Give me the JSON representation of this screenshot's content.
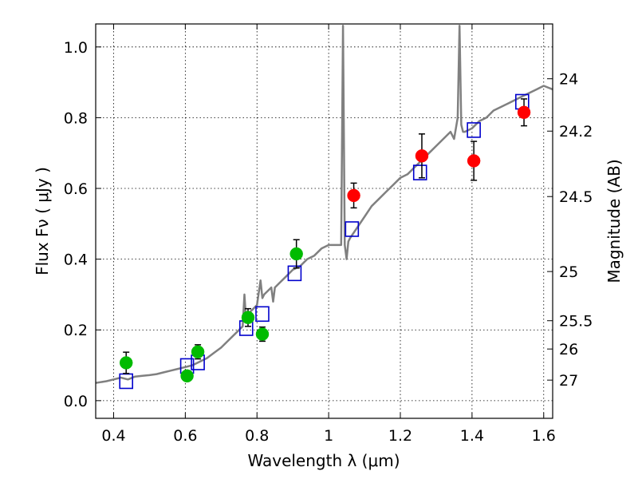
{
  "chart_data": {
    "type": "scatter",
    "xlabel": "Wavelength  λ (μm)",
    "ylabel": "Flux  Fν  ( μJy )",
    "ylabel_right": "Magnitude (AB)",
    "xlim": [
      0.35,
      1.625
    ],
    "ylim": [
      -0.05,
      1.065
    ],
    "grid": true,
    "x_ticks": [
      0.4,
      0.6,
      0.8,
      1.0,
      1.2,
      1.4,
      1.6
    ],
    "x_tick_labels": [
      "0.4",
      "0.6",
      "0.8",
      "1",
      "1.2",
      "1.4",
      "1.6"
    ],
    "y_ticks": [
      0.0,
      0.2,
      0.4,
      0.6,
      0.8,
      1.0
    ],
    "y_tick_labels": [
      "0.0",
      "0.2",
      "0.4",
      "0.6",
      "0.8",
      "1.0"
    ],
    "right_ticks": [
      {
        "label": "24",
        "flux": 0.91
      },
      {
        "label": "24.2",
        "flux": 0.762
      },
      {
        "label": "24.5",
        "flux": 0.577
      },
      {
        "label": "25",
        "flux": 0.365
      },
      {
        "label": "25.5",
        "flux": 0.226
      },
      {
        "label": "26",
        "flux": 0.146
      },
      {
        "label": "27",
        "flux": 0.058
      }
    ],
    "colors": {
      "model": "#808080",
      "model_points": "#0000cc",
      "green": "#00bb00",
      "red": "#ff0000",
      "errorbar": "#000000"
    },
    "series": [
      {
        "kind": "model_spectrum",
        "x": [
          0.35,
          0.38,
          0.4,
          0.42,
          0.44,
          0.46,
          0.48,
          0.5,
          0.52,
          0.54,
          0.56,
          0.58,
          0.6,
          0.62,
          0.64,
          0.66,
          0.68,
          0.7,
          0.72,
          0.74,
          0.76,
          0.765,
          0.77,
          0.775,
          0.78,
          0.8,
          0.81,
          0.815,
          0.82,
          0.84,
          0.845,
          0.85,
          0.86,
          0.88,
          0.9,
          0.92,
          0.94,
          0.96,
          0.98,
          1.0,
          1.02,
          1.035,
          1.04,
          1.045,
          1.05,
          1.055,
          1.06,
          1.08,
          1.1,
          1.12,
          1.14,
          1.16,
          1.18,
          1.2,
          1.22,
          1.24,
          1.26,
          1.28,
          1.3,
          1.32,
          1.34,
          1.35,
          1.36,
          1.365,
          1.37,
          1.375,
          1.38,
          1.4,
          1.42,
          1.44,
          1.46,
          1.48,
          1.5,
          1.52,
          1.54,
          1.56,
          1.58,
          1.6,
          1.625
        ],
        "y": [
          0.05,
          0.055,
          0.06,
          0.065,
          0.06,
          0.068,
          0.07,
          0.072,
          0.075,
          0.08,
          0.085,
          0.09,
          0.095,
          0.1,
          0.11,
          0.12,
          0.135,
          0.15,
          0.17,
          0.19,
          0.21,
          0.3,
          0.22,
          0.24,
          0.25,
          0.27,
          0.34,
          0.29,
          0.3,
          0.32,
          0.28,
          0.32,
          0.33,
          0.35,
          0.37,
          0.38,
          0.4,
          0.41,
          0.43,
          0.44,
          0.44,
          0.44,
          1.06,
          0.44,
          0.4,
          0.45,
          0.46,
          0.49,
          0.52,
          0.55,
          0.57,
          0.59,
          0.61,
          0.63,
          0.64,
          0.66,
          0.68,
          0.7,
          0.72,
          0.74,
          0.76,
          0.74,
          0.8,
          1.06,
          0.78,
          0.76,
          0.76,
          0.77,
          0.79,
          0.8,
          0.82,
          0.83,
          0.84,
          0.85,
          0.86,
          0.87,
          0.88,
          0.89,
          0.88
        ]
      },
      {
        "kind": "model_points",
        "x": [
          0.435,
          0.605,
          0.635,
          0.77,
          0.815,
          0.905,
          1.065,
          1.255,
          1.405,
          1.54
        ],
        "y": [
          0.055,
          0.098,
          0.108,
          0.205,
          0.245,
          0.36,
          0.485,
          0.645,
          0.765,
          0.845
        ]
      },
      {
        "kind": "observed",
        "color": "green",
        "x": [
          0.435,
          0.605,
          0.635,
          0.775,
          0.815,
          0.91
        ],
        "y": [
          0.107,
          0.07,
          0.138,
          0.235,
          0.188,
          0.415
        ],
        "err": [
          0.03,
          0.012,
          0.02,
          0.025,
          0.02,
          0.04
        ]
      },
      {
        "kind": "observed",
        "color": "red",
        "x": [
          1.07,
          1.26,
          1.405,
          1.545
        ],
        "y": [
          0.58,
          0.692,
          0.678,
          0.815
        ],
        "err": [
          0.035,
          0.062,
          0.055,
          0.038
        ]
      }
    ]
  }
}
